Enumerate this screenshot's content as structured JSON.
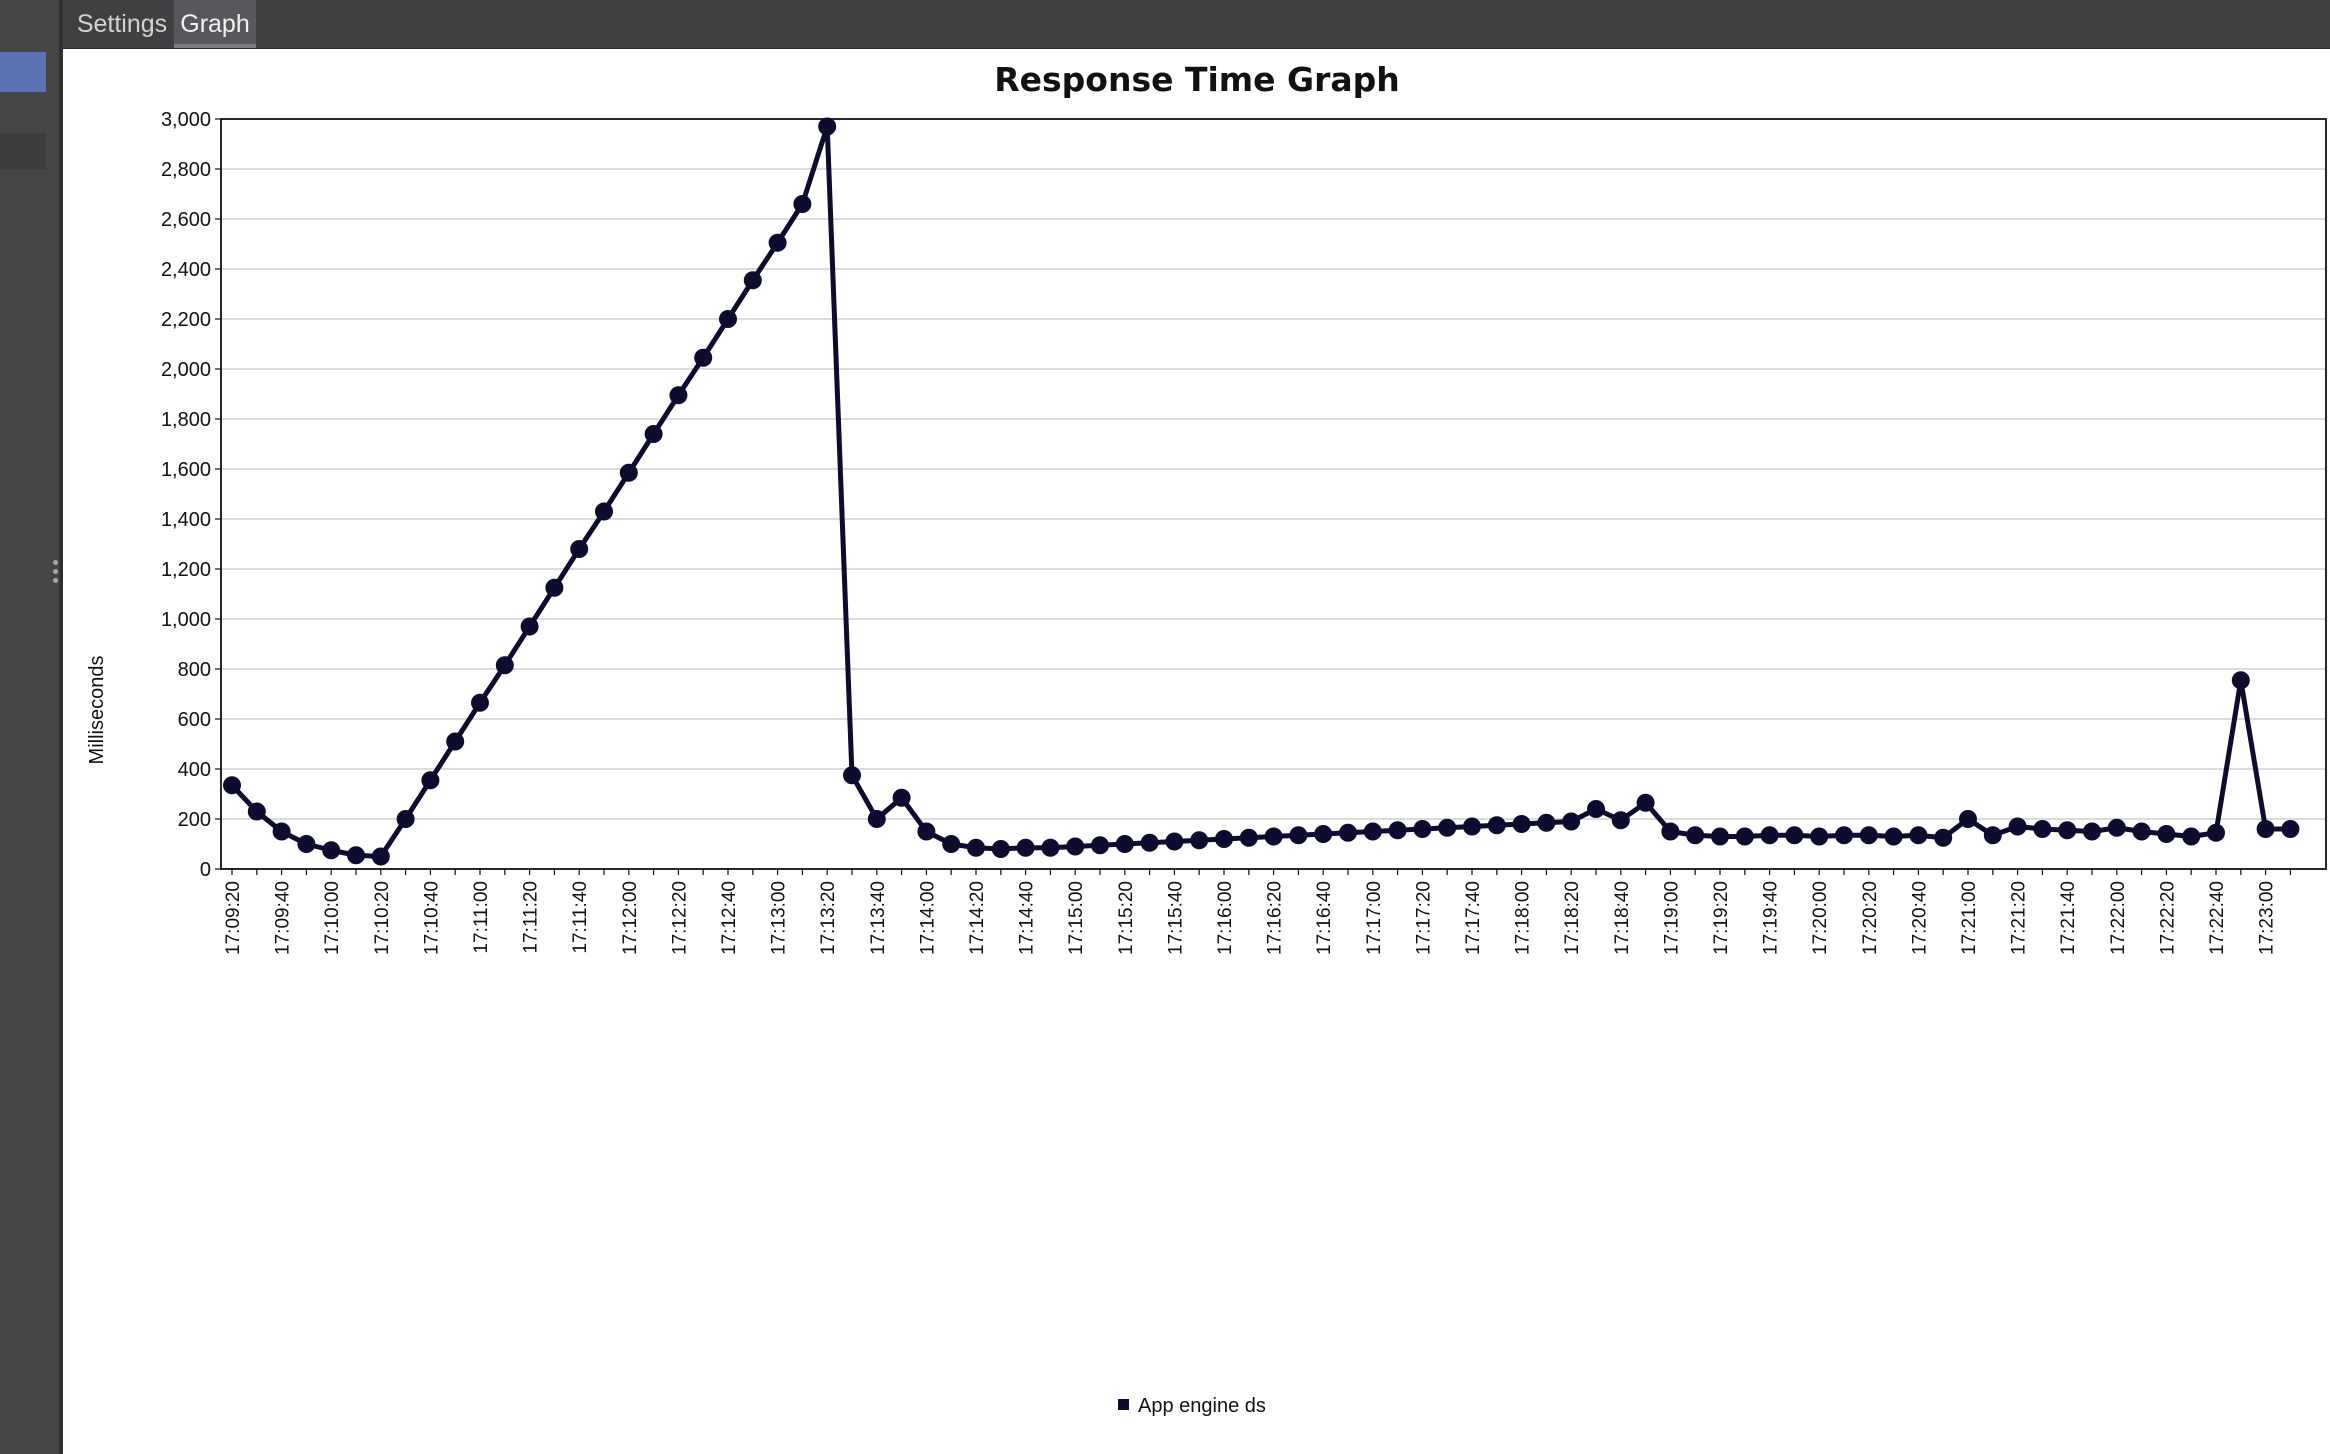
{
  "tabs": [
    {
      "label": "Settings",
      "active": false
    },
    {
      "label": "Graph",
      "active": true
    }
  ],
  "chart_data": {
    "type": "line",
    "title": "Response Time Graph",
    "ylabel": "Milliseconds",
    "xlabel": "",
    "ylim": [
      0,
      3000
    ],
    "yticks": [
      0,
      200,
      400,
      600,
      800,
      1000,
      1200,
      1400,
      1600,
      1800,
      2000,
      2200,
      2400,
      2600,
      2800,
      3000
    ],
    "ytick_labels": [
      "0",
      "200",
      "400",
      "600",
      "800",
      "1,000",
      "1,200",
      "1,400",
      "1,600",
      "1,800",
      "2,000",
      "2,200",
      "2,400",
      "2,600",
      "2,800",
      "3,000"
    ],
    "xtick_labels": [
      "17:09:20",
      "17:09:40",
      "17:10:00",
      "17:10:20",
      "17:10:40",
      "17:11:00",
      "17:11:20",
      "17:11:40",
      "17:12:00",
      "17:12:20",
      "17:12:40",
      "17:13:00",
      "17:13:20",
      "17:13:40",
      "17:14:00",
      "17:14:20",
      "17:14:40",
      "17:15:00",
      "17:15:20",
      "17:15:40",
      "17:16:00",
      "17:16:20",
      "17:16:40",
      "17:17:00",
      "17:17:20",
      "17:17:40",
      "17:18:00",
      "17:18:20",
      "17:18:40",
      "17:19:00",
      "17:19:20",
      "17:19:40",
      "17:20:00",
      "17:20:20",
      "17:20:40",
      "17:21:00",
      "17:21:20",
      "17:21:40",
      "17:22:00",
      "17:22:20",
      "17:22:40",
      "17:23:00"
    ],
    "x_start": "17:09:20",
    "x_interval_seconds": 10,
    "grid": "horizontal",
    "legend": "bottom-center",
    "series": [
      {
        "name": "App engine ds",
        "color": "#0d0c2e",
        "values": [
          335,
          230,
          150,
          100,
          75,
          55,
          50,
          200,
          355,
          510,
          665,
          815,
          970,
          1125,
          1280,
          1430,
          1585,
          1740,
          1895,
          2045,
          2200,
          2355,
          2505,
          2660,
          2970,
          375,
          200,
          285,
          150,
          100,
          85,
          80,
          85,
          85,
          90,
          95,
          100,
          105,
          110,
          115,
          120,
          125,
          130,
          135,
          140,
          145,
          150,
          155,
          160,
          165,
          170,
          175,
          180,
          185,
          190,
          240,
          195,
          265,
          150,
          135,
          130,
          130,
          135,
          135,
          130,
          135,
          135,
          130,
          135,
          125,
          200,
          135,
          170,
          160,
          155,
          150,
          165,
          150,
          140,
          130,
          145,
          755,
          160,
          160
        ]
      }
    ]
  }
}
